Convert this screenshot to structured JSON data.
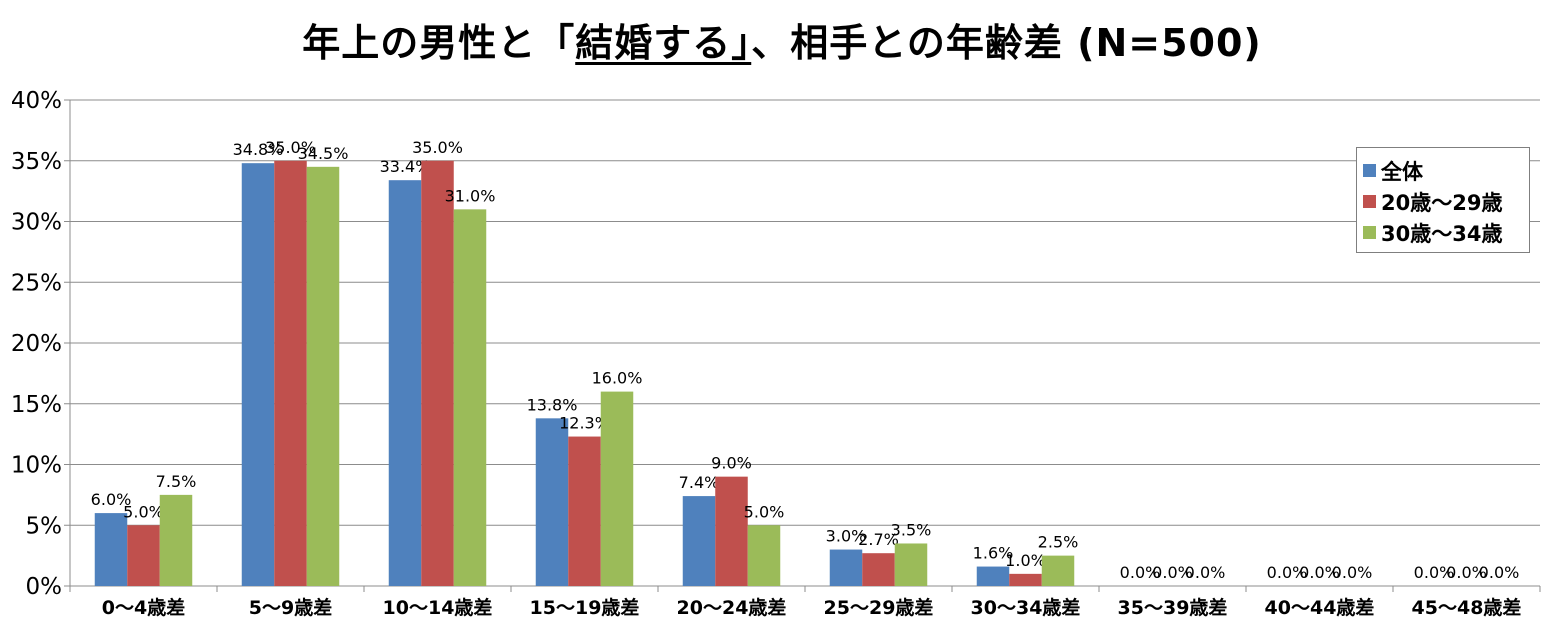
{
  "chart_data": {
    "type": "bar",
    "title_pre": "年上の男性と「",
    "title_u": "結婚する」",
    "title_post": "、相手との年齢差 (N=500)",
    "categories": [
      "0～4歳差",
      "5～9歳差",
      "10～14歳差",
      "15～19歳差",
      "20～24歳差",
      "25～29歳差",
      "30～34歳差",
      "35～39歳差",
      "40～44歳差",
      "45～48歳差"
    ],
    "series": [
      {
        "name": "全体",
        "color": "#4f81bd",
        "values": [
          6.0,
          34.8,
          33.4,
          13.8,
          7.4,
          3.0,
          1.6,
          0.0,
          0.0,
          0.0
        ],
        "labels": [
          "6.0%",
          "34.8%",
          "33.4%",
          "13.8%",
          "7.4%",
          "3.0%",
          "1.6%",
          "0.0%",
          "0.0%",
          "0.0%"
        ]
      },
      {
        "name": "20歳～29歳",
        "color": "#c0504d",
        "values": [
          5.0,
          35.0,
          35.0,
          12.3,
          9.0,
          2.7,
          1.0,
          0.0,
          0.0,
          0.0
        ],
        "labels": [
          "5.0%",
          "35.0%",
          "35.0%",
          "12.3%",
          "9.0%",
          "2.7%",
          "1.0%",
          "0.0%",
          "0.0%",
          "0.0%"
        ]
      },
      {
        "name": "30歳～34歳",
        "color": "#9bbb59",
        "values": [
          7.5,
          34.5,
          31.0,
          16.0,
          5.0,
          3.5,
          2.5,
          0.0,
          0.0,
          0.0
        ],
        "labels": [
          "7.5%",
          "34.5%",
          "31.0%",
          "16.0%",
          "5.0%",
          "3.5%",
          "2.5%",
          "0.0%",
          "0.0%",
          "0.0%"
        ]
      }
    ],
    "ylim": [
      0,
      40
    ],
    "yticks": [
      "0%",
      "5%",
      "10%",
      "15%",
      "20%",
      "25%",
      "30%",
      "35%",
      "40%"
    ],
    "grid": true,
    "legend_position": "right"
  }
}
